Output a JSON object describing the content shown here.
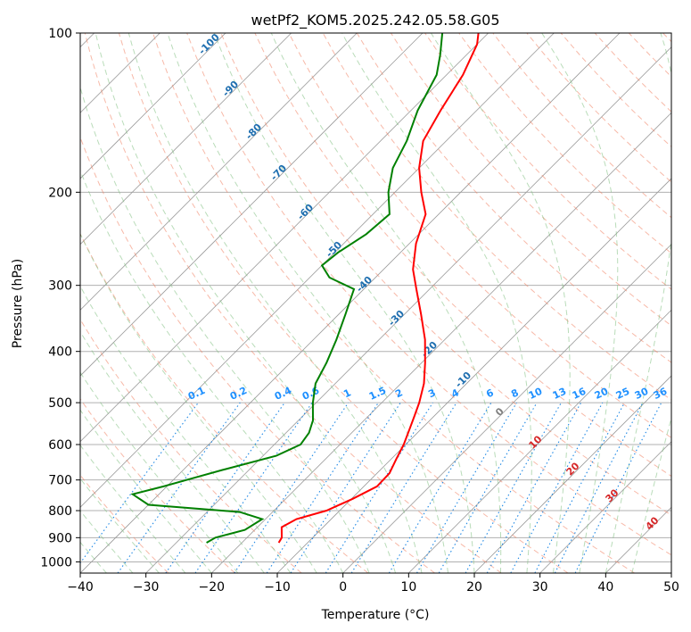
{
  "chart_data": {
    "type": "line",
    "title": "wetPf2_KOM5.2025.242.05.58.G05",
    "xlabel": "Temperature (°C)",
    "ylabel": "Pressure (hPa)",
    "xlim": [
      -40,
      50
    ],
    "ylim": [
      1050,
      100
    ],
    "y_scale": "log",
    "grid": true,
    "x_ticks": [
      -40,
      -30,
      -20,
      -10,
      0,
      10,
      20,
      30,
      40,
      50
    ],
    "y_ticks": [
      1000,
      900,
      800,
      700,
      600,
      500,
      400,
      300,
      200,
      100
    ],
    "skew_deg": 45,
    "colors": {
      "temperature": "#ff0000",
      "dewpoint": "#008000",
      "isotherm": "#9a9a9a",
      "isobar": "#b0b0b0",
      "dry_adiabat": "#f08060",
      "moist_adiabat": "#80c080",
      "mixing_ratio": "#1e88e5",
      "isotherm_label": "#1f6fb0",
      "moist_label": "#d62728",
      "mixing_label": "#1e90ff",
      "curve_tan": "#d2b48c"
    },
    "isotherm_labels": [
      "-100",
      "-90",
      "-80",
      "-70",
      "-60",
      "-50",
      "-40",
      "-30",
      "-20",
      "-10"
    ],
    "moist_adiabat_labels": [
      "0",
      "10",
      "20",
      "30",
      "40"
    ],
    "mixing_ratio_labels": [
      "0.1",
      "0.2",
      "0.4",
      "0.6",
      "1",
      "1.5",
      "2",
      "3",
      "4",
      "6",
      "8",
      "10",
      "13",
      "16",
      "20",
      "25",
      "30",
      "36"
    ],
    "series": [
      {
        "key": "temperature",
        "points": [
          [
            -14.4,
            920
          ],
          [
            -14.7,
            900
          ],
          [
            -16.3,
            860
          ],
          [
            -15.3,
            830
          ],
          [
            -12.0,
            800
          ],
          [
            -9.8,
            760
          ],
          [
            -8.0,
            720
          ],
          [
            -8.1,
            680
          ],
          [
            -9.2,
            640
          ],
          [
            -10.3,
            600
          ],
          [
            -11.8,
            560
          ],
          [
            -13.0,
            530
          ],
          [
            -14.3,
            500
          ],
          [
            -16.5,
            460
          ],
          [
            -19.5,
            420
          ],
          [
            -23.0,
            380
          ],
          [
            -27.5,
            340
          ],
          [
            -32.0,
            305
          ],
          [
            -35.5,
            280
          ],
          [
            -39.0,
            250
          ],
          [
            -42.0,
            220
          ],
          [
            -46.0,
            200
          ],
          [
            -50.0,
            180
          ],
          [
            -53.5,
            160
          ],
          [
            -55.5,
            140
          ],
          [
            -57.5,
            120
          ],
          [
            -60.0,
            105
          ],
          [
            -61.5,
            100
          ]
        ]
      },
      {
        "key": "dewpoint",
        "points": [
          [
            -25.4,
            920
          ],
          [
            -24.8,
            900
          ],
          [
            -21.5,
            870
          ],
          [
            -20.5,
            830
          ],
          [
            -25.0,
            805
          ],
          [
            -40.0,
            780
          ],
          [
            -44.0,
            745
          ],
          [
            -40.5,
            720
          ],
          [
            -38.0,
            700
          ],
          [
            -34.0,
            670
          ],
          [
            -28.0,
            630
          ],
          [
            -26.0,
            600
          ],
          [
            -26.5,
            570
          ],
          [
            -27.8,
            540
          ],
          [
            -30.5,
            500
          ],
          [
            -33.0,
            460
          ],
          [
            -34.5,
            420
          ],
          [
            -36.5,
            380
          ],
          [
            -39.0,
            340
          ],
          [
            -41.5,
            305
          ],
          [
            -47.0,
            290
          ],
          [
            -50.0,
            275
          ],
          [
            -49.5,
            260
          ],
          [
            -48.0,
            240
          ],
          [
            -47.5,
            220
          ],
          [
            -51.0,
            200
          ],
          [
            -54.0,
            180
          ],
          [
            -56.0,
            160
          ],
          [
            -59.0,
            140
          ],
          [
            -61.5,
            120
          ],
          [
            -64.0,
            110
          ],
          [
            -67.0,
            100
          ]
        ]
      }
    ]
  }
}
